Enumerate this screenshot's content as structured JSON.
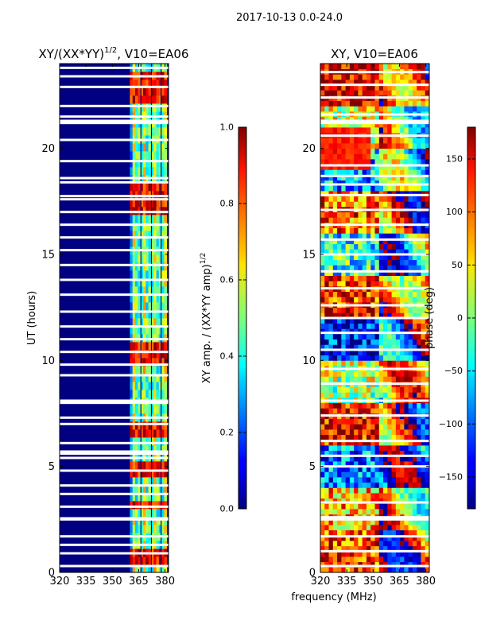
{
  "chart_data": {
    "suptitle": "2017-10-13 0.0-24.0",
    "xlabel": "frequency (MHz)",
    "panels": [
      {
        "id": "amp",
        "type": "heatmap",
        "title_main": "XY/(XX*YY)",
        "title_exp": "1/2",
        "title_tail": ", V10=EA06",
        "ylabel": "UT (hours)",
        "xlim": [
          320,
          382
        ],
        "ylim": [
          0,
          24
        ],
        "xticks": [
          320,
          335,
          350,
          365,
          380
        ],
        "yticks": [
          0,
          5,
          10,
          15,
          20
        ],
        "colorbar": {
          "label_main": "XY amp. / (XX*YY amp)",
          "label_exp": "1/2",
          "range": [
            0.0,
            1.0
          ],
          "ticks": [
            0.0,
            0.2,
            0.4,
            0.6,
            0.8,
            1.0
          ],
          "tick_labels": [
            "0.0",
            "0.2",
            "0.4",
            "0.6",
            "0.8",
            "1.0"
          ]
        },
        "active_band_mhz": [
          360,
          381
        ],
        "channel_gaps_mhz": [
          366.0,
          372.0,
          377.5
        ],
        "flagged_hours": [
          0.3,
          0.9,
          1.3,
          1.7,
          2.5,
          2.55,
          3.1,
          3.7,
          4.1,
          4.8,
          5.4,
          5.6,
          5.7,
          6.1,
          7.0,
          7.3,
          8.0,
          8.1,
          9.3,
          9.8,
          10.4,
          11.0,
          11.6,
          12.3,
          13.1,
          13.8,
          14.5,
          15.2,
          15.8,
          16.4,
          17.0,
          17.6,
          17.75,
          18.4,
          18.6,
          19.4,
          20.4,
          21.2,
          21.3,
          21.5,
          22.0,
          22.9,
          23.4,
          23.8
        ],
        "bright_events_hours": [
          0.5,
          1.0,
          3.2,
          4.9,
          6.8,
          10.2,
          10.4,
          17.2,
          18.1,
          22.6,
          22.8,
          23.5
        ]
      },
      {
        "id": "phase",
        "type": "heatmap",
        "title_main": "XY, V10=EA06",
        "ylabel": "",
        "xlim": [
          320,
          382
        ],
        "ylim": [
          0,
          24
        ],
        "xticks": [
          320,
          335,
          350,
          365,
          380
        ],
        "yticks": [
          0,
          5,
          10,
          15,
          20
        ],
        "colorbar": {
          "label_main": "phase (deg)",
          "range": [
            -180,
            180
          ],
          "ticks": [
            -150,
            -100,
            -50,
            0,
            50,
            100,
            150
          ],
          "tick_labels": [
            "−150",
            "−100",
            "−50",
            "0",
            "50",
            "100",
            "150"
          ]
        },
        "flagged_hours": [
          0.3,
          1.0,
          1.7,
          2.5,
          2.6,
          3.3,
          5.0,
          5.5,
          6.2,
          7.4,
          8.1,
          8.9,
          9.6,
          10.5,
          11.3,
          12.0,
          12.6,
          13.4,
          14.2,
          15.0,
          15.7,
          16.4,
          17.1,
          17.8,
          18.3,
          18.7,
          19.2,
          20.6,
          21.2,
          21.3,
          21.6,
          22.4,
          23.0,
          23.6
        ]
      }
    ]
  }
}
